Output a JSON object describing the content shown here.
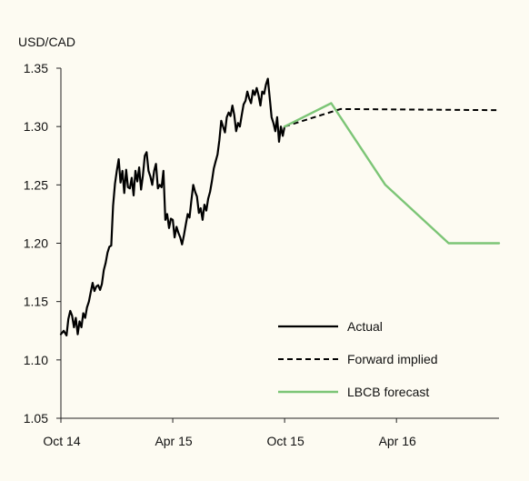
{
  "chart_data": {
    "type": "line",
    "title": "",
    "ylabel": "USD/CAD",
    "xlabel": "",
    "ylim": [
      1.05,
      1.35
    ],
    "yticks": [
      1.05,
      1.1,
      1.15,
      1.2,
      1.25,
      1.3,
      1.35
    ],
    "ytick_labels": [
      "1.05",
      "1.10",
      "1.15",
      "1.20",
      "1.25",
      "1.30",
      "1.35"
    ],
    "xlim": [
      0,
      23.5
    ],
    "x_unit": "months from Oct 14",
    "xticks": [
      0,
      6,
      12,
      18
    ],
    "xtick_labels": [
      "Oct 14",
      "Apr 15",
      "Oct 15",
      "Apr 16"
    ],
    "grid": false,
    "legend_position": "bottom-right",
    "series": [
      {
        "name": "Actual",
        "style": "solid",
        "color": "#000000",
        "x": [
          0,
          0.15,
          0.3,
          0.4,
          0.5,
          0.6,
          0.7,
          0.8,
          0.9,
          1.0,
          1.1,
          1.2,
          1.3,
          1.4,
          1.5,
          1.6,
          1.7,
          1.8,
          1.9,
          2.0,
          2.1,
          2.2,
          2.3,
          2.4,
          2.5,
          2.6,
          2.7,
          2.8,
          2.9,
          3.0,
          3.1,
          3.2,
          3.3,
          3.4,
          3.5,
          3.6,
          3.7,
          3.8,
          3.9,
          4.0,
          4.1,
          4.2,
          4.3,
          4.4,
          4.5,
          4.6,
          4.7,
          4.8,
          4.9,
          5.0,
          5.1,
          5.2,
          5.3,
          5.4,
          5.5,
          5.6,
          5.7,
          5.8,
          5.9,
          6.0,
          6.1,
          6.2,
          6.3,
          6.4,
          6.5,
          6.6,
          6.7,
          6.8,
          6.9,
          7.0,
          7.1,
          7.2,
          7.3,
          7.4,
          7.5,
          7.6,
          7.7,
          7.8,
          7.9,
          8.0,
          8.1,
          8.2,
          8.3,
          8.4,
          8.5,
          8.6,
          8.7,
          8.8,
          8.9,
          9.0,
          9.1,
          9.2,
          9.3,
          9.4,
          9.5,
          9.6,
          9.7,
          9.8,
          9.9,
          10.0,
          10.1,
          10.2,
          10.3,
          10.4,
          10.5,
          10.6,
          10.7,
          10.8,
          10.9,
          11.0,
          11.1,
          11.2,
          11.3,
          11.4,
          11.5,
          11.6,
          11.7,
          11.8,
          11.9,
          12.0
        ],
        "y": [
          1.122,
          1.125,
          1.121,
          1.135,
          1.142,
          1.138,
          1.128,
          1.136,
          1.122,
          1.133,
          1.128,
          1.14,
          1.136,
          1.145,
          1.15,
          1.158,
          1.166,
          1.159,
          1.163,
          1.164,
          1.16,
          1.165,
          1.177,
          1.183,
          1.192,
          1.197,
          1.198,
          1.232,
          1.251,
          1.262,
          1.272,
          1.252,
          1.262,
          1.243,
          1.263,
          1.248,
          1.247,
          1.256,
          1.241,
          1.262,
          1.253,
          1.265,
          1.246,
          1.258,
          1.275,
          1.278,
          1.262,
          1.257,
          1.25,
          1.262,
          1.268,
          1.247,
          1.25,
          1.248,
          1.262,
          1.22,
          1.225,
          1.213,
          1.221,
          1.22,
          1.205,
          1.214,
          1.209,
          1.205,
          1.199,
          1.207,
          1.216,
          1.225,
          1.222,
          1.237,
          1.25,
          1.244,
          1.24,
          1.226,
          1.23,
          1.22,
          1.233,
          1.228,
          1.238,
          1.244,
          1.253,
          1.264,
          1.27,
          1.276,
          1.288,
          1.305,
          1.3,
          1.295,
          1.308,
          1.312,
          1.309,
          1.318,
          1.31,
          1.296,
          1.303,
          1.3,
          1.31,
          1.319,
          1.322,
          1.33,
          1.324,
          1.32,
          1.331,
          1.327,
          1.333,
          1.327,
          1.318,
          1.33,
          1.328,
          1.336,
          1.341,
          1.325,
          1.308,
          1.303,
          1.296,
          1.308,
          1.287,
          1.3,
          1.292,
          1.3
        ]
      },
      {
        "name": "Forward implied",
        "style": "dashed",
        "color": "#000000",
        "x": [
          12,
          15,
          23.5
        ],
        "y": [
          1.3,
          1.315,
          1.314
        ]
      },
      {
        "name": "LBCB forecast",
        "style": "solid",
        "color": "#7cc576",
        "x": [
          12,
          14.5,
          17.4,
          20.8,
          23.5
        ],
        "y": [
          1.3,
          1.32,
          1.25,
          1.2,
          1.2
        ]
      }
    ]
  }
}
